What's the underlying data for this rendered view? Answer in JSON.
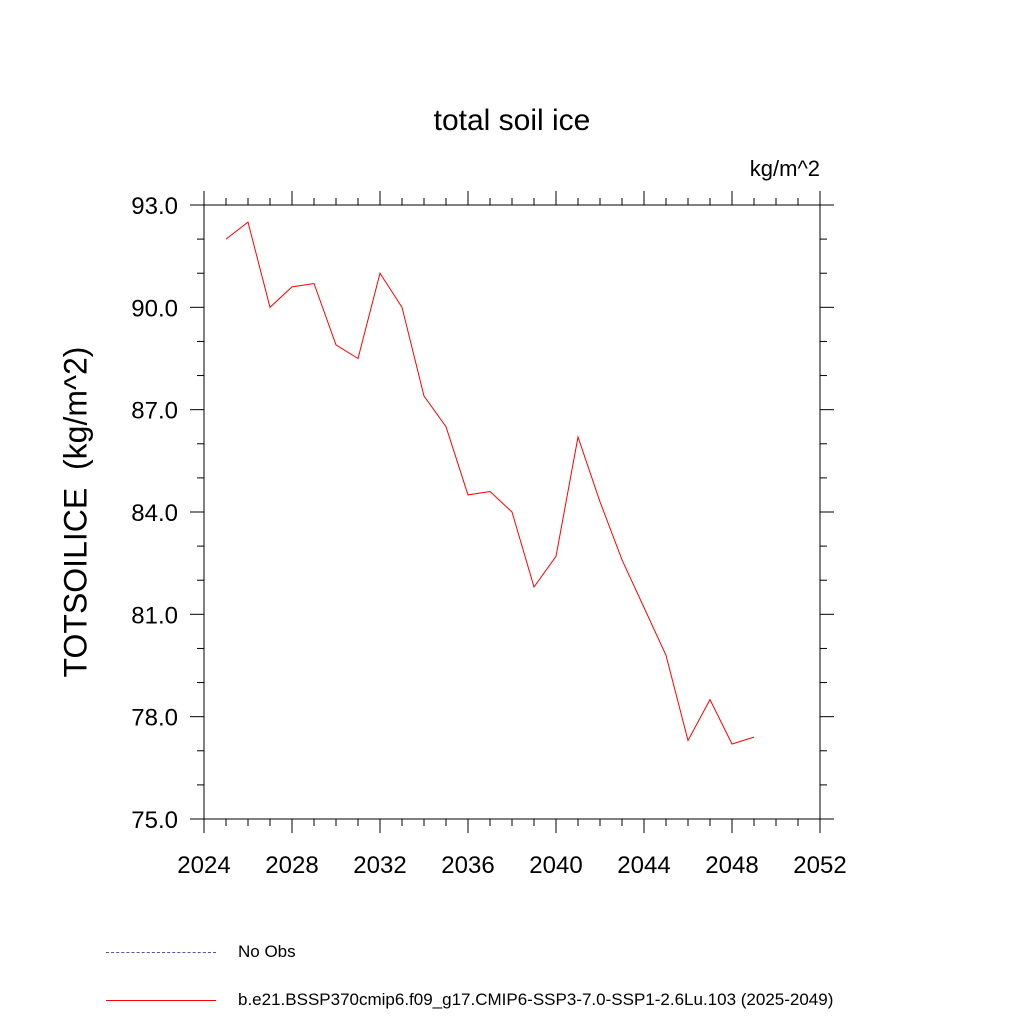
{
  "chart_data": {
    "type": "line",
    "title": "total soil ice",
    "units": "kg/m^2",
    "ylabel": "TOTSOILICE  (kg/m^2)",
    "xlabel": "",
    "xlim": [
      2024,
      2052
    ],
    "ylim": [
      75.0,
      93.0
    ],
    "x_ticks": [
      "2024",
      "2028",
      "2032",
      "2036",
      "2040",
      "2044",
      "2048",
      "2052"
    ],
    "y_ticks": [
      "75.0",
      "78.0",
      "81.0",
      "84.0",
      "87.0",
      "90.0",
      "93.0"
    ],
    "series": [
      {
        "name": "b.e21.BSSP370cmip6.f09_g17.CMIP6-SSP3-7.0-SSP1-2.6Lu.103 (2025-2049)",
        "color": "#ff0000",
        "x": [
          2025,
          2026,
          2027,
          2028,
          2029,
          2030,
          2031,
          2032,
          2033,
          2034,
          2035,
          2036,
          2037,
          2038,
          2039,
          2040,
          2041,
          2042,
          2043,
          2044,
          2045,
          2046,
          2047,
          2048,
          2049
        ],
        "y": [
          92.0,
          92.5,
          90.0,
          90.6,
          90.7,
          88.9,
          88.5,
          91.0,
          90.0,
          87.4,
          86.5,
          84.5,
          84.6,
          84.0,
          81.8,
          82.7,
          86.2,
          84.3,
          82.6,
          81.2,
          79.8,
          77.3,
          78.5,
          77.2,
          77.4
        ]
      }
    ],
    "legend": [
      {
        "label": "No Obs",
        "style": "dashed",
        "color": "#5b4fa8"
      },
      {
        "label": "b.e21.BSSP370cmip6.f09_g17.CMIP6-SSP3-7.0-SSP1-2.6Lu.103 (2025-2049)",
        "style": "solid",
        "color": "#ff0000"
      }
    ],
    "legend_placement": "bottom-left"
  }
}
